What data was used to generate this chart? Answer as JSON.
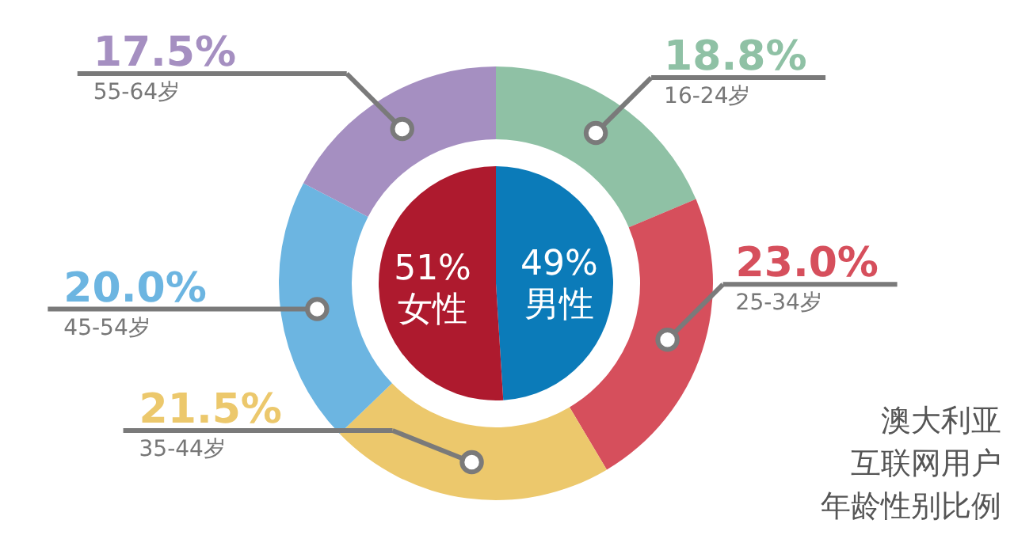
{
  "chart_data": [
    {
      "type": "donut",
      "categories": [
        "16-24岁",
        "25-34岁",
        "35-44岁",
        "45-54岁",
        "55-64岁"
      ],
      "values": [
        18.8,
        23.0,
        21.5,
        20.0,
        17.5
      ],
      "value_labels": [
        "18.8%",
        "23.0%",
        "21.5%",
        "20.0%",
        "17.5%"
      ],
      "colors": [
        "#8fc1a5",
        "#d64f5c",
        "#ecc86c",
        "#6cb5e1",
        "#a58fc1"
      ],
      "annotations": [
        "澳大利亚",
        "互联网用户",
        "年龄性别比例"
      ]
    },
    {
      "type": "pie",
      "categories": [
        "男性",
        "女性"
      ],
      "values": [
        49,
        51
      ],
      "value_labels": [
        "49%",
        "51%"
      ],
      "colors": [
        "#0b7bb9",
        "#ae1a2e"
      ]
    }
  ]
}
